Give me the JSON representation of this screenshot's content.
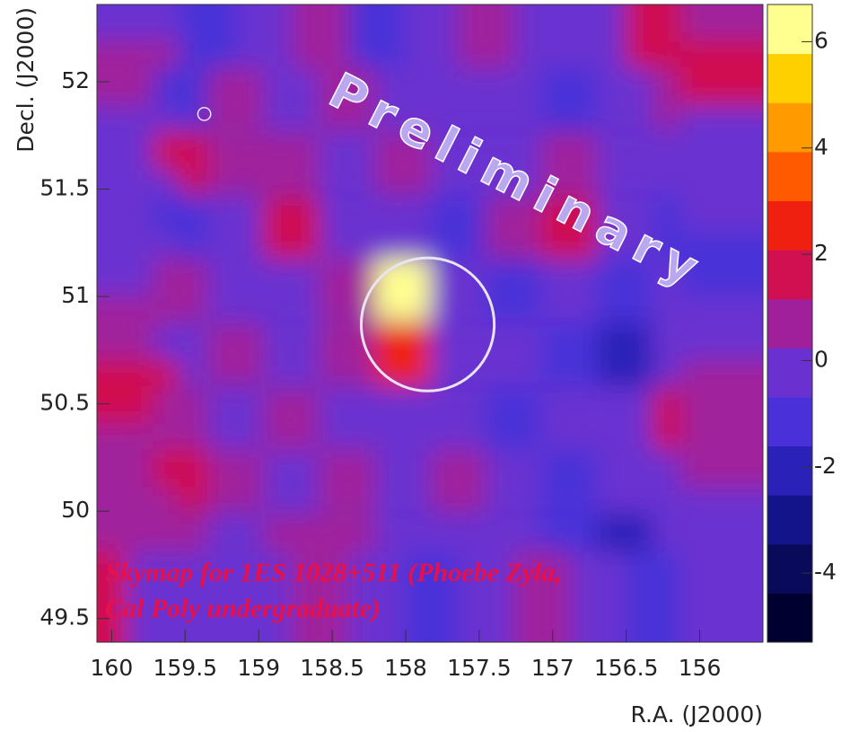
{
  "chart_data": {
    "type": "heatmap",
    "watermark": "Preliminary",
    "annotation": [
      "Skymap for 1ES 1028+511 (Phoebe Zyla,",
      "Cal Poly undergraduate)"
    ],
    "x_label": "R.A. (J2000)",
    "y_label": "Decl. (J2000)",
    "xlim": [
      160.1,
      155.57
    ],
    "ylim": [
      49.39,
      52.36
    ],
    "xticks": [
      160,
      159.5,
      159,
      158.5,
      158,
      157.5,
      157,
      156.5,
      156
    ],
    "yticks": [
      49.5,
      50,
      50.5,
      51,
      51.5,
      52
    ],
    "clim": [
      -5.3,
      6.7
    ],
    "cticks": [
      -4,
      -2,
      0,
      2,
      4,
      6
    ],
    "colors": [
      "#000030",
      "#0a0a5a",
      "#14148a",
      "#2a22b8",
      "#4a30d8",
      "#6a30d0",
      "#a0209c",
      "#d01050",
      "#f02010",
      "#ff5a00",
      "#ff9a00",
      "#ffd000",
      "#ffff90"
    ],
    "x": [
      159.91,
      159.53,
      159.16,
      158.78,
      158.4,
      158.02,
      157.64,
      157.27,
      156.89,
      156.51,
      156.13,
      155.76
    ],
    "y": [
      52.21,
      51.92,
      51.62,
      51.32,
      51.03,
      50.73,
      50.43,
      50.14,
      49.84,
      49.54
    ],
    "z": [
      [
        0,
        0,
        -1,
        0,
        1,
        -1,
        0,
        1,
        0,
        0,
        2,
        1
      ],
      [
        1,
        -1,
        1,
        0,
        1,
        0,
        0,
        0,
        -1,
        0,
        1,
        2
      ],
      [
        0,
        2,
        1,
        1,
        0,
        1,
        0,
        0,
        1,
        0,
        0,
        0
      ],
      [
        0,
        -1,
        0,
        2,
        0,
        0,
        -1,
        1,
        2,
        0,
        -1,
        0
      ],
      [
        0,
        1,
        0,
        0,
        1,
        6,
        0,
        -1,
        0,
        -1,
        0,
        -1
      ],
      [
        1,
        0,
        1,
        0,
        1,
        3,
        0,
        0,
        -1,
        -2,
        0,
        0
      ],
      [
        2,
        1,
        0,
        1,
        0,
        0,
        0,
        -1,
        0,
        0,
        2,
        1
      ],
      [
        1,
        2,
        1,
        0,
        1,
        0,
        1,
        0,
        -1,
        0,
        0,
        1
      ],
      [
        1,
        1,
        0,
        1,
        1,
        0,
        0,
        0,
        -1,
        -2,
        0,
        0
      ],
      [
        2,
        0,
        0,
        0,
        1,
        0,
        -1,
        0,
        1,
        0,
        -1,
        0
      ]
    ],
    "markers": [
      {
        "x": 157.85,
        "y": 50.87,
        "r": 0.31
      },
      {
        "x": 159.37,
        "y": 51.85,
        "r": 0.03
      }
    ]
  }
}
